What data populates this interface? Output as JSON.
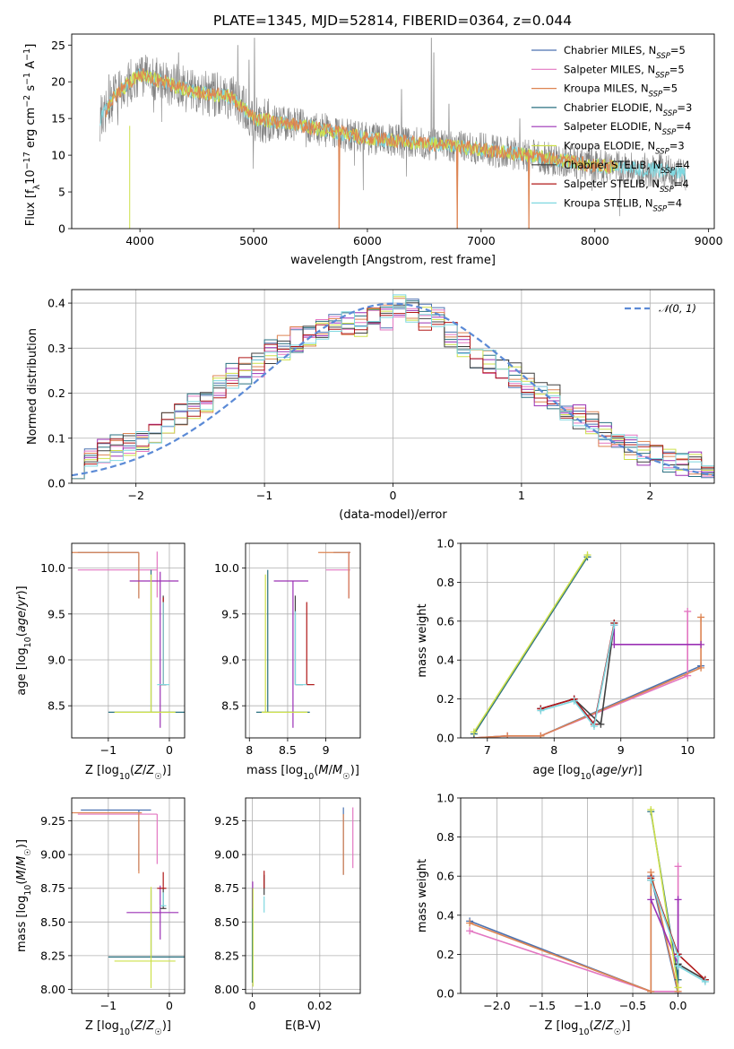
{
  "figure_title": "PLATE=1345, MJD=52814, FIBERID=0364, z=0.044",
  "colors": {
    "Chabrier MILES": "#4c72b0",
    "Salpeter MILES": "#e377c2",
    "Kroupa MILES": "#dd8452",
    "Chabrier ELODIE": "#2a7080",
    "Salpeter ELODIE": "#9b30b5",
    "Kroupa ELODIE": "#cde04a",
    "Chabrier STELIB": "#404040",
    "Salpeter STELIB": "#b01818",
    "Kroupa STELIB": "#7fd8e0",
    "data": "#808080",
    "gaussian": "#5b8ad6"
  },
  "chart_data": [
    {
      "id": "spectrum",
      "type": "line",
      "title": "PLATE=1345, MJD=52814, FIBERID=0364, z=0.044",
      "xlabel": "wavelength [Angstrom, rest frame]",
      "ylabel": "Flux [f_λ10^-17 erg cm^-2 s^-1 A^-1]",
      "xlim": [
        3400,
        9050
      ],
      "ylim": [
        0,
        26.5
      ],
      "xticks": [
        4000,
        5000,
        6000,
        7000,
        8000,
        9000
      ],
      "yticks": [
        0,
        5,
        10,
        15,
        20,
        25
      ],
      "legend_position": "top-right",
      "grid": false,
      "series": [
        {
          "name": "Chabrier MILES",
          "nssp": 5
        },
        {
          "name": "Salpeter MILES",
          "nssp": 5
        },
        {
          "name": "Kroupa MILES",
          "nssp": 5
        },
        {
          "name": "Chabrier ELODIE",
          "nssp": 3
        },
        {
          "name": "Salpeter ELODIE",
          "nssp": 4
        },
        {
          "name": "Kroupa ELODIE",
          "nssp": 3
        },
        {
          "name": "Chabrier STELIB",
          "nssp": 4
        },
        {
          "name": "Salpeter STELIB",
          "nssp": 4
        },
        {
          "name": "Kroupa STELIB",
          "nssp": 4
        }
      ],
      "continuum": {
        "x": [
          3650,
          3800,
          4000,
          4200,
          4500,
          4800,
          5000,
          5500,
          6000,
          6500,
          7000,
          7500,
          8000,
          8500,
          8800
        ],
        "y": [
          15.0,
          18.5,
          21.0,
          20.0,
          18.5,
          18.0,
          15.0,
          13.8,
          12.3,
          11.6,
          10.8,
          9.8,
          8.6,
          8.0,
          7.5
        ]
      },
      "model_dips": [
        {
          "x": 3910,
          "y": 0
        },
        {
          "x": 5750,
          "y": 0
        },
        {
          "x": 6790,
          "y": 0
        },
        {
          "x": 7420,
          "y": 0
        }
      ],
      "emission_spikes": [
        {
          "x": 3727,
          "y": 21
        },
        {
          "x": 4340,
          "y": 24
        },
        {
          "x": 4861,
          "y": 25
        },
        {
          "x": 4959,
          "y": 23
        },
        {
          "x": 5007,
          "y": 26
        },
        {
          "x": 6300,
          "y": 19
        },
        {
          "x": 6563,
          "y": 26
        },
        {
          "x": 6584,
          "y": 24
        },
        {
          "x": 6717,
          "y": 17
        },
        {
          "x": 7340,
          "y": 15
        }
      ]
    },
    {
      "id": "residuals",
      "type": "histogram",
      "xlabel": "(data-model)/error",
      "ylabel": "Normed distribution",
      "xlim": [
        -2.5,
        2.5
      ],
      "ylim": [
        0,
        0.43
      ],
      "xticks": [
        -2,
        -1,
        0,
        1,
        2
      ],
      "yticks": [
        0.0,
        0.1,
        0.2,
        0.3,
        0.4
      ],
      "grid": true,
      "legend_position": "top-right",
      "gaussian_label": "𝒩(0, 1)",
      "bin_edges": [
        -2.5,
        -2.4,
        -2.3,
        -2.2,
        -2.1,
        -2.0,
        -1.9,
        -1.8,
        -1.7,
        -1.6,
        -1.5,
        -1.4,
        -1.3,
        -1.2,
        -1.1,
        -1.0,
        -0.9,
        -0.8,
        -0.7,
        -0.6,
        -0.5,
        -0.4,
        -0.3,
        -0.2,
        -0.1,
        0.0,
        0.1,
        0.2,
        0.3,
        0.4,
        0.5,
        0.6,
        0.7,
        0.8,
        0.9,
        1.0,
        1.1,
        1.2,
        1.3,
        1.4,
        1.5,
        1.6,
        1.7,
        1.8,
        1.9,
        2.0,
        2.1,
        2.2,
        2.3,
        2.4,
        2.5
      ],
      "base_counts": [
        0.04,
        0.06,
        0.07,
        0.08,
        0.09,
        0.1,
        0.11,
        0.13,
        0.15,
        0.17,
        0.18,
        0.21,
        0.24,
        0.25,
        0.26,
        0.29,
        0.3,
        0.32,
        0.33,
        0.34,
        0.36,
        0.36,
        0.35,
        0.37,
        0.37,
        0.39,
        0.38,
        0.37,
        0.36,
        0.33,
        0.31,
        0.28,
        0.27,
        0.26,
        0.24,
        0.22,
        0.2,
        0.19,
        0.17,
        0.15,
        0.13,
        0.11,
        0.09,
        0.08,
        0.07,
        0.06,
        0.05,
        0.04,
        0.04,
        0.03
      ]
    },
    {
      "id": "age-vs-Z",
      "type": "errorbar",
      "xlabel": "Z [log10(Z/Z☉)]",
      "ylabel": "age [log10(age/yr)]",
      "xlim": [
        -1.6,
        0.25
      ],
      "ylim": [
        8.15,
        10.27
      ],
      "xticks": [
        -1,
        0
      ],
      "yticks": [
        8.5,
        9.0,
        9.5,
        10.0
      ],
      "grid": true,
      "points": [
        {
          "s": "Chabrier MILES",
          "x": -0.5,
          "y": 10.17,
          "xl": 1.0,
          "xh": 0.0,
          "yl": 0.5,
          "yh": 0.0
        },
        {
          "s": "Salpeter MILES",
          "x": -0.2,
          "y": 9.98,
          "xl": 1.3,
          "xh": 0.0,
          "yl": 0.3,
          "yh": 0.2
        },
        {
          "s": "Kroupa MILES",
          "x": -0.5,
          "y": 10.17,
          "xl": 1.1,
          "xh": 0.0,
          "yl": 0.5,
          "yh": 0.0
        },
        {
          "s": "Chabrier ELODIE",
          "x": -0.3,
          "y": 8.43,
          "xl": 0.7,
          "xh": 0.6,
          "yl": 0.0,
          "yh": 1.55
        },
        {
          "s": "Salpeter ELODIE",
          "x": -0.15,
          "y": 9.86,
          "xl": 0.5,
          "xh": 0.3,
          "yl": 1.6,
          "yh": 0.1
        },
        {
          "s": "Kroupa ELODIE",
          "x": -0.3,
          "y": 8.43,
          "xl": 0.6,
          "xh": 0.4,
          "yl": 0.0,
          "yh": 1.5
        },
        {
          "s": "Chabrier STELIB",
          "x": -0.1,
          "y": 8.73,
          "xl": 0.05,
          "xh": 0.05,
          "yl": 0.0,
          "yh": 0.97
        },
        {
          "s": "Salpeter STELIB",
          "x": -0.1,
          "y": 8.73,
          "xl": 0.05,
          "xh": 0.05,
          "yl": 0.0,
          "yh": 0.95
        },
        {
          "s": "Kroupa STELIB",
          "x": -0.1,
          "y": 8.73,
          "xl": 0.1,
          "xh": 0.1,
          "yl": 0.0,
          "yh": 0.9
        }
      ]
    },
    {
      "id": "age-vs-mass",
      "type": "errorbar",
      "xlabel": "mass [log10(M/M☉)]",
      "ylabel": "",
      "xlim": [
        7.95,
        9.45
      ],
      "ylim": [
        8.15,
        10.27
      ],
      "xticks": [
        8.0,
        8.5,
        9.0
      ],
      "yticks": [
        8.5,
        9.0,
        9.5,
        10.0
      ],
      "grid": true,
      "points": [
        {
          "s": "Chabrier MILES",
          "x": 9.3,
          "y": 10.17,
          "xl": 0.2,
          "xh": 0.02,
          "yl": 0.5,
          "yh": 0.0
        },
        {
          "s": "Salpeter MILES",
          "x": 9.3,
          "y": 9.98,
          "xl": 0.3,
          "xh": 0.02,
          "yl": 0.3,
          "yh": 0.2
        },
        {
          "s": "Kroupa MILES",
          "x": 9.3,
          "y": 10.17,
          "xl": 0.4,
          "xh": 0.02,
          "yl": 0.5,
          "yh": 0.0
        },
        {
          "s": "Chabrier ELODIE",
          "x": 8.24,
          "y": 8.43,
          "xl": 0.15,
          "xh": 0.55,
          "yl": 0.0,
          "yh": 1.55
        },
        {
          "s": "Salpeter ELODIE",
          "x": 8.57,
          "y": 9.86,
          "xl": 0.25,
          "xh": 0.2,
          "yl": 1.6,
          "yh": 0.0
        },
        {
          "s": "Kroupa ELODIE",
          "x": 8.21,
          "y": 8.43,
          "xl": 0.05,
          "xh": 0.55,
          "yl": 0.0,
          "yh": 1.5
        },
        {
          "s": "Chabrier STELIB",
          "x": 8.6,
          "y": 8.73,
          "xl": 0.0,
          "xh": 0.1,
          "yl": 0.0,
          "yh": 0.97
        },
        {
          "s": "Salpeter STELIB",
          "x": 8.75,
          "y": 8.73,
          "xl": 0.0,
          "xh": 0.1,
          "yl": 0.0,
          "yh": 0.9
        },
        {
          "s": "Kroupa STELIB",
          "x": 8.6,
          "y": 8.73,
          "xl": 0.0,
          "xh": 0.15,
          "yl": 0.0,
          "yh": 0.8
        }
      ]
    },
    {
      "id": "massweight-vs-age",
      "type": "line",
      "xlabel": "age [log10(age/yr)]",
      "ylabel": "mass weight",
      "xlim": [
        6.6,
        10.4
      ],
      "ylim": [
        0,
        1
      ],
      "xticks": [
        7,
        8,
        9,
        10
      ],
      "yticks": [
        0.0,
        0.2,
        0.4,
        0.6,
        0.8,
        1.0
      ],
      "grid": true,
      "series": [
        {
          "s": "Chabrier MILES",
          "x": [
            6.8,
            7.3,
            7.8,
            10.2
          ],
          "y": [
            0.0,
            0.01,
            0.01,
            0.37
          ]
        },
        {
          "s": "Salpeter MILES",
          "x": [
            6.8,
            7.3,
            7.8,
            10.0,
            10.0
          ],
          "y": [
            0.0,
            0.01,
            0.01,
            0.32,
            0.65
          ]
        },
        {
          "s": "Kroupa MILES",
          "x": [
            6.8,
            7.3,
            7.8,
            10.2,
            10.2
          ],
          "y": [
            0.0,
            0.01,
            0.01,
            0.36,
            0.62
          ]
        },
        {
          "s": "Chabrier ELODIE",
          "x": [
            6.8,
            8.5
          ],
          "y": [
            0.02,
            0.93
          ]
        },
        {
          "s": "Salpeter ELODIE",
          "x": [
            7.8,
            8.3,
            8.6,
            8.9,
            8.9,
            10.2
          ],
          "y": [
            0.15,
            0.2,
            0.07,
            0.58,
            0.48,
            0.48
          ]
        },
        {
          "s": "Kroupa ELODIE",
          "x": [
            6.8,
            8.5
          ],
          "y": [
            0.03,
            0.94
          ]
        },
        {
          "s": "Chabrier STELIB",
          "x": [
            7.8,
            8.3,
            8.7,
            8.9
          ],
          "y": [
            0.15,
            0.2,
            0.07,
            0.59
          ]
        },
        {
          "s": "Salpeter STELIB",
          "x": [
            7.8,
            8.3,
            8.6,
            8.9
          ],
          "y": [
            0.15,
            0.2,
            0.07,
            0.59
          ]
        },
        {
          "s": "Kroupa STELIB",
          "x": [
            7.8,
            8.3,
            8.6,
            8.9
          ],
          "y": [
            0.14,
            0.19,
            0.06,
            0.58
          ]
        }
      ]
    },
    {
      "id": "mass-vs-Z",
      "type": "errorbar",
      "xlabel": "Z [log10(Z/Z☉)]",
      "ylabel": "mass [log10(M/M☉)]",
      "xlim": [
        -1.6,
        0.25
      ],
      "ylim": [
        7.97,
        9.42
      ],
      "xticks": [
        -1,
        0
      ],
      "yticks": [
        8.0,
        8.25,
        8.5,
        8.75,
        9.0,
        9.25
      ],
      "grid": true,
      "points": [
        {
          "s": "Chabrier MILES",
          "x": -0.5,
          "y": 9.33,
          "xl": 0.95,
          "xh": 0.2,
          "yl": 0.45,
          "yh": 0.0
        },
        {
          "s": "Salpeter MILES",
          "x": -0.2,
          "y": 9.3,
          "xl": 1.3,
          "xh": 0.0,
          "yl": 0.37,
          "yh": 0.0
        },
        {
          "s": "Kroupa MILES",
          "x": -0.5,
          "y": 9.31,
          "xl": 1.1,
          "xh": 0.05,
          "yl": 0.45,
          "yh": 0.0
        },
        {
          "s": "Chabrier ELODIE",
          "x": -0.3,
          "y": 8.24,
          "xl": 0.7,
          "xh": 0.6,
          "yl": 0.0,
          "yh": 0.5
        },
        {
          "s": "Salpeter ELODIE",
          "x": -0.15,
          "y": 8.57,
          "xl": 0.55,
          "xh": 0.3,
          "yl": 0.2,
          "yh": 0.2
        },
        {
          "s": "Kroupa ELODIE",
          "x": -0.3,
          "y": 8.21,
          "xl": 0.6,
          "xh": 0.4,
          "yl": 0.2,
          "yh": 0.55
        },
        {
          "s": "Chabrier STELIB",
          "x": -0.1,
          "y": 8.6,
          "xl": 0.05,
          "xh": 0.05,
          "yl": 0.0,
          "yh": 0.15
        },
        {
          "s": "Salpeter STELIB",
          "x": -0.1,
          "y": 8.75,
          "xl": 0.1,
          "xh": 0.05,
          "yl": 0.0,
          "yh": 0.12
        },
        {
          "s": "Kroupa STELIB",
          "x": -0.1,
          "y": 8.62,
          "xl": 0.05,
          "xh": 0.05,
          "yl": 0.0,
          "yh": 0.1
        }
      ]
    },
    {
      "id": "mass-vs-ebv",
      "type": "errorbar",
      "xlabel": "E(B-V)",
      "ylabel": "",
      "xlim": [
        -0.002,
        0.032
      ],
      "ylim": [
        7.97,
        9.42
      ],
      "xticks": [
        0.0,
        0.02
      ],
      "yticks": [
        8.0,
        8.25,
        8.5,
        8.75,
        9.0,
        9.25
      ],
      "grid": true,
      "points": [
        {
          "s": "Chabrier MILES",
          "x": 0.027,
          "y": 9.1,
          "xl": 0.0,
          "xh": 0.0,
          "yl": 0.25,
          "yh": 0.25
        },
        {
          "s": "Salpeter MILES",
          "x": 0.0298,
          "y": 9.1,
          "xl": 0.0,
          "xh": 0.0,
          "yl": 0.2,
          "yh": 0.25
        },
        {
          "s": "Kroupa MILES",
          "x": 0.027,
          "y": 9.1,
          "xl": 0.0,
          "xh": 0.0,
          "yl": 0.25,
          "yh": 0.2
        },
        {
          "s": "Chabrier ELODIE",
          "x": 0.0,
          "y": 8.4,
          "xl": 0.0,
          "xh": 0.0,
          "yl": 0.35,
          "yh": 0.35
        },
        {
          "s": "Salpeter ELODIE",
          "x": 0.0001,
          "y": 8.7,
          "xl": 0.0,
          "xh": 0.0,
          "yl": 0.1,
          "yh": 0.1
        },
        {
          "s": "Kroupa ELODIE",
          "x": 0.0002,
          "y": 8.37,
          "xl": 0.0,
          "xh": 0.0,
          "yl": 0.35,
          "yh": 0.38
        },
        {
          "s": "Chabrier STELIB",
          "x": 0.0035,
          "y": 8.75,
          "xl": 0.0,
          "xh": 0.0,
          "yl": 0.05,
          "yh": 0.1
        },
        {
          "s": "Salpeter STELIB",
          "x": 0.0035,
          "y": 8.8,
          "xl": 0.0,
          "xh": 0.0,
          "yl": 0.05,
          "yh": 0.08
        },
        {
          "s": "Kroupa STELIB",
          "x": 0.0035,
          "y": 8.64,
          "xl": 0.0,
          "xh": 0.0,
          "yl": 0.07,
          "yh": 0.05
        }
      ]
    },
    {
      "id": "massweight-vs-Z",
      "type": "line",
      "xlabel": "Z [log10(Z/Z☉)]",
      "ylabel": "mass weight",
      "xlim": [
        -2.4,
        0.4
      ],
      "ylim": [
        0,
        1
      ],
      "xticks": [
        -2.0,
        -1.5,
        -1.0,
        -0.5,
        0.0
      ],
      "yticks": [
        0.0,
        0.2,
        0.4,
        0.6,
        0.8,
        1.0
      ],
      "grid": true,
      "series": [
        {
          "s": "Chabrier MILES",
          "x": [
            -2.3,
            -0.3,
            -0.3,
            0.0
          ],
          "y": [
            0.37,
            0.01,
            0.6,
            0.0
          ]
        },
        {
          "s": "Salpeter MILES",
          "x": [
            -2.3,
            -0.3,
            0.0,
            0.0
          ],
          "y": [
            0.32,
            0.01,
            0.01,
            0.65
          ]
        },
        {
          "s": "Kroupa MILES",
          "x": [
            -2.3,
            -0.3,
            -0.3,
            0.0
          ],
          "y": [
            0.36,
            0.01,
            0.62,
            0.01
          ]
        },
        {
          "s": "Chabrier ELODIE",
          "x": [
            -0.3,
            0.0,
            0.0
          ],
          "y": [
            0.93,
            0.07,
            0.2
          ]
        },
        {
          "s": "Salpeter ELODIE",
          "x": [
            -0.3,
            0.0,
            0.0,
            0.0
          ],
          "y": [
            0.48,
            0.15,
            0.48,
            0.2
          ]
        },
        {
          "s": "Kroupa ELODIE",
          "x": [
            -0.3,
            0.0
          ],
          "y": [
            0.94,
            0.03
          ]
        },
        {
          "s": "Chabrier STELIB",
          "x": [
            -0.3,
            0.0,
            0.0,
            0.3
          ],
          "y": [
            0.58,
            0.2,
            0.15,
            0.07
          ]
        },
        {
          "s": "Salpeter STELIB",
          "x": [
            -0.3,
            0.0,
            0.3
          ],
          "y": [
            0.59,
            0.2,
            0.07
          ]
        },
        {
          "s": "Kroupa STELIB",
          "x": [
            -0.3,
            0.0,
            0.0,
            0.3
          ],
          "y": [
            0.58,
            0.19,
            0.14,
            0.06
          ]
        }
      ]
    }
  ]
}
